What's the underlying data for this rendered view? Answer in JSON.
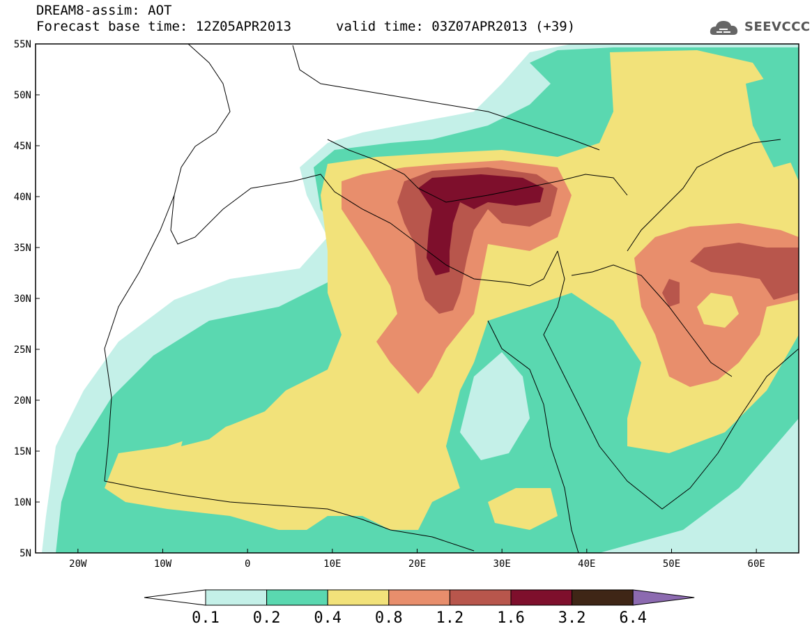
{
  "header": {
    "title": "DREAM8-assim: AOT",
    "base_time": "Forecast base time: 12Z05APR2013",
    "valid_time": "valid time: 03Z07APR2013 (+39)"
  },
  "logo": {
    "text": "SEEVCCC",
    "icon": "cloud-icon"
  },
  "map": {
    "lon_range": [
      -25,
      65
    ],
    "lat_range": [
      5,
      55
    ],
    "lat_labels": [
      "55N",
      "50N",
      "45N",
      "40N",
      "35N",
      "30N",
      "25N",
      "20N",
      "15N",
      "10N",
      "5N"
    ],
    "lon_labels": [
      "20W",
      "10W",
      "0",
      "10E",
      "20E",
      "30E",
      "40E",
      "50E",
      "60E"
    ]
  },
  "colorbar": {
    "labels": [
      "0.1",
      "0.2",
      "0.4",
      "0.8",
      "1.2",
      "1.6",
      "3.2",
      "6.4"
    ],
    "colors": [
      "#ffffff",
      "#c4f0e8",
      "#5ad8b0",
      "#f2e27a",
      "#e88e6c",
      "#b8564c",
      "#7e0f2c",
      "#3f2616",
      "#8c6ab0"
    ]
  }
}
